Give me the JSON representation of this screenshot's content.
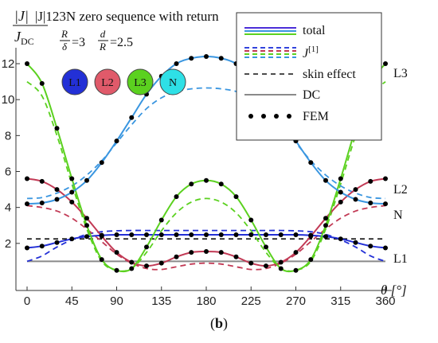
{
  "colors": {
    "L1": "#2330d6",
    "L2": "#c23a55",
    "L3": "#5bd11f",
    "N": "#3a96e0",
    "DC": "#8a8a8a",
    "skin": "#111111",
    "fem": "#000000",
    "total_legend": [
      "#4b2fd8",
      "#3a96e0",
      "#5bd11f"
    ],
    "j1_legend": [
      "#3344dd",
      "#c23a55",
      "#5bd11f",
      "#3a96e0"
    ]
  },
  "phase_badges": [
    {
      "label": "L1",
      "color": "#2330d6"
    },
    {
      "label": "L2",
      "color": "#e05a6a"
    },
    {
      "label": "L3",
      "color": "#5bd11f"
    },
    {
      "label": "N",
      "color": "#2ee0e6"
    }
  ],
  "caption": {
    "prefix": "(",
    "letter": "b",
    "suffix": ")"
  },
  "chart_data": {
    "type": "line",
    "title": "|J|123N zero sequence with return",
    "ylabel_num": "|J|",
    "ylabel_den": "J",
    "ylabel_den_sub": "DC",
    "params": {
      "ratio1": {
        "num": "R",
        "den": "δ",
        "value": "=3"
      },
      "ratio2": {
        "num": "d",
        "den": "R",
        "value": "=2.5"
      }
    },
    "xlabel": "θ [°]",
    "x_ticks": [
      0,
      45,
      90,
      135,
      180,
      225,
      270,
      315,
      360
    ],
    "y_ticks": [
      2,
      4,
      6,
      8,
      10,
      12
    ],
    "xlim": [
      0,
      370
    ],
    "ylim": [
      0,
      13.2
    ],
    "legend": {
      "placement": "top-right",
      "entries": [
        {
          "label": "total",
          "style": "multicolor-solid"
        },
        {
          "label": "J",
          "sup": "[1]",
          "style": "multicolor-dashed"
        },
        {
          "label": "skin effect",
          "style": "black-dashed"
        },
        {
          "label": "DC",
          "style": "gray-solid"
        },
        {
          "label": "FEM",
          "style": "dots"
        }
      ]
    },
    "curve_labels": [
      {
        "text": "L3",
        "series": "L3"
      },
      {
        "text": "L2",
        "series": "L2"
      },
      {
        "text": "N",
        "series": "N"
      },
      {
        "text": "L1",
        "series": "L1"
      }
    ],
    "x": [
      0,
      15,
      30,
      45,
      60,
      75,
      90,
      105,
      120,
      135,
      150,
      165,
      180,
      195,
      210,
      225,
      240,
      255,
      270,
      285,
      300,
      315,
      330,
      345,
      360
    ],
    "series": [
      {
        "name": "L1",
        "kind": "total",
        "values": [
          1.75,
          1.85,
          2.05,
          2.25,
          2.38,
          2.45,
          2.48,
          2.48,
          2.48,
          2.48,
          2.48,
          2.48,
          2.48,
          2.48,
          2.48,
          2.48,
          2.48,
          2.48,
          2.48,
          2.45,
          2.38,
          2.25,
          2.05,
          1.85,
          1.75
        ]
      },
      {
        "name": "L2",
        "kind": "total",
        "values": [
          5.6,
          5.45,
          5.0,
          4.3,
          3.4,
          2.4,
          1.5,
          0.95,
          0.75,
          0.9,
          1.25,
          1.5,
          1.55,
          1.5,
          1.25,
          0.9,
          0.75,
          0.95,
          1.5,
          2.4,
          3.4,
          4.3,
          5.0,
          5.45,
          5.6
        ]
      },
      {
        "name": "L3",
        "kind": "total",
        "values": [
          12.0,
          10.9,
          8.4,
          5.6,
          3.0,
          1.1,
          0.5,
          0.6,
          1.8,
          3.3,
          4.6,
          5.3,
          5.5,
          5.3,
          4.6,
          3.3,
          1.8,
          0.6,
          0.5,
          1.1,
          3.0,
          5.6,
          8.4,
          10.9,
          12.0
        ]
      },
      {
        "name": "N",
        "kind": "total",
        "values": [
          4.2,
          4.25,
          4.45,
          4.85,
          5.5,
          6.5,
          7.7,
          9.0,
          10.3,
          11.3,
          12.0,
          12.3,
          12.4,
          12.3,
          12.0,
          11.3,
          10.3,
          9.0,
          7.7,
          6.5,
          5.5,
          4.85,
          4.45,
          4.25,
          4.2
        ]
      },
      {
        "name": "L1",
        "kind": "J1",
        "values": [
          1.0,
          1.3,
          1.8,
          2.2,
          2.5,
          2.65,
          2.7,
          2.72,
          2.72,
          2.72,
          2.72,
          2.72,
          2.72,
          2.72,
          2.72,
          2.72,
          2.72,
          2.72,
          2.7,
          2.65,
          2.5,
          2.2,
          1.8,
          1.3,
          1.0
        ]
      },
      {
        "name": "L2",
        "kind": "J1",
        "values": [
          4.1,
          4.0,
          3.8,
          3.4,
          2.8,
          2.1,
          1.4,
          0.9,
          0.6,
          0.55,
          0.7,
          0.85,
          0.9,
          0.85,
          0.7,
          0.55,
          0.6,
          0.9,
          1.4,
          2.1,
          2.8,
          3.4,
          3.8,
          4.0,
          4.1
        ]
      },
      {
        "name": "L3",
        "kind": "J1",
        "values": [
          11.0,
          10.2,
          8.0,
          5.3,
          2.8,
          1.0,
          0.5,
          0.6,
          1.5,
          2.7,
          3.7,
          4.3,
          4.5,
          4.3,
          3.7,
          2.7,
          1.5,
          0.6,
          0.5,
          1.0,
          2.8,
          5.3,
          8.0,
          10.2,
          11.0
        ]
      },
      {
        "name": "N",
        "kind": "J1",
        "values": [
          4.5,
          4.55,
          4.8,
          5.2,
          5.8,
          6.6,
          7.6,
          8.6,
          9.5,
          10.1,
          10.45,
          10.6,
          10.65,
          10.6,
          10.45,
          10.1,
          9.5,
          8.6,
          7.6,
          6.6,
          5.8,
          5.2,
          4.8,
          4.55,
          4.5
        ]
      },
      {
        "name": "skin effect",
        "kind": "skin",
        "values": [
          2.25,
          2.25,
          2.25,
          2.25,
          2.25,
          2.25,
          2.25,
          2.25,
          2.25,
          2.25,
          2.25,
          2.25,
          2.25,
          2.25,
          2.25,
          2.25,
          2.25,
          2.25,
          2.25,
          2.25,
          2.25,
          2.25,
          2.25,
          2.25,
          2.25
        ]
      },
      {
        "name": "DC",
        "kind": "dc",
        "values": [
          1.0,
          1.0,
          1.0,
          1.0,
          1.0,
          1.0,
          1.0,
          1.0,
          1.0,
          1.0,
          1.0,
          1.0,
          1.0,
          1.0,
          1.0,
          1.0,
          1.0,
          1.0,
          1.0,
          1.0,
          1.0,
          1.0,
          1.0,
          1.0,
          1.0
        ]
      }
    ],
    "fem_points": [
      {
        "series": "L1",
        "x": [
          0,
          15,
          30,
          45,
          60,
          75,
          90,
          105,
          120,
          135,
          150,
          165,
          180,
          195,
          210,
          225,
          240,
          255,
          270,
          285,
          300,
          315,
          330,
          345,
          360
        ],
        "y": [
          1.75,
          1.85,
          2.05,
          2.25,
          2.38,
          2.45,
          2.48,
          2.48,
          2.48,
          2.48,
          2.48,
          2.48,
          2.48,
          2.48,
          2.48,
          2.48,
          2.48,
          2.48,
          2.48,
          2.45,
          2.38,
          2.25,
          2.05,
          1.85,
          1.75
        ]
      },
      {
        "series": "L2",
        "x": [
          0,
          15,
          30,
          45,
          60,
          75,
          90,
          105,
          120,
          135,
          150,
          165,
          180,
          195,
          210,
          225,
          240,
          255,
          270,
          285,
          300,
          315,
          330,
          345,
          360
        ],
        "y": [
          5.6,
          5.45,
          5.0,
          4.3,
          3.4,
          2.4,
          1.5,
          0.95,
          0.75,
          0.9,
          1.25,
          1.5,
          1.55,
          1.5,
          1.25,
          0.9,
          0.75,
          0.95,
          1.5,
          2.4,
          3.4,
          4.3,
          5.0,
          5.45,
          5.6
        ]
      },
      {
        "series": "L3",
        "x": [
          0,
          15,
          30,
          45,
          60,
          75,
          90,
          105,
          120,
          135,
          150,
          165,
          180,
          195,
          210,
          225,
          240,
          255,
          270,
          285,
          300,
          315,
          330,
          345,
          360
        ],
        "y": [
          12.0,
          10.9,
          8.4,
          5.6,
          3.0,
          1.1,
          0.5,
          0.6,
          1.8,
          3.3,
          4.6,
          5.3,
          5.5,
          5.3,
          4.6,
          3.3,
          1.8,
          0.6,
          0.5,
          1.1,
          3.0,
          5.6,
          8.4,
          10.9,
          12.0
        ]
      },
      {
        "series": "N",
        "x": [
          0,
          15,
          30,
          45,
          60,
          75,
          90,
          105,
          120,
          135,
          150,
          165,
          180,
          195,
          210,
          225,
          240,
          255,
          270,
          285,
          300,
          315,
          330,
          345,
          360
        ],
        "y": [
          4.2,
          4.25,
          4.45,
          4.85,
          5.5,
          6.5,
          7.7,
          9.0,
          10.3,
          11.3,
          12.0,
          12.3,
          12.4,
          12.3,
          12.0,
          11.3,
          10.3,
          9.0,
          7.7,
          6.5,
          5.5,
          4.85,
          4.45,
          4.25,
          4.2
        ]
      }
    ]
  }
}
